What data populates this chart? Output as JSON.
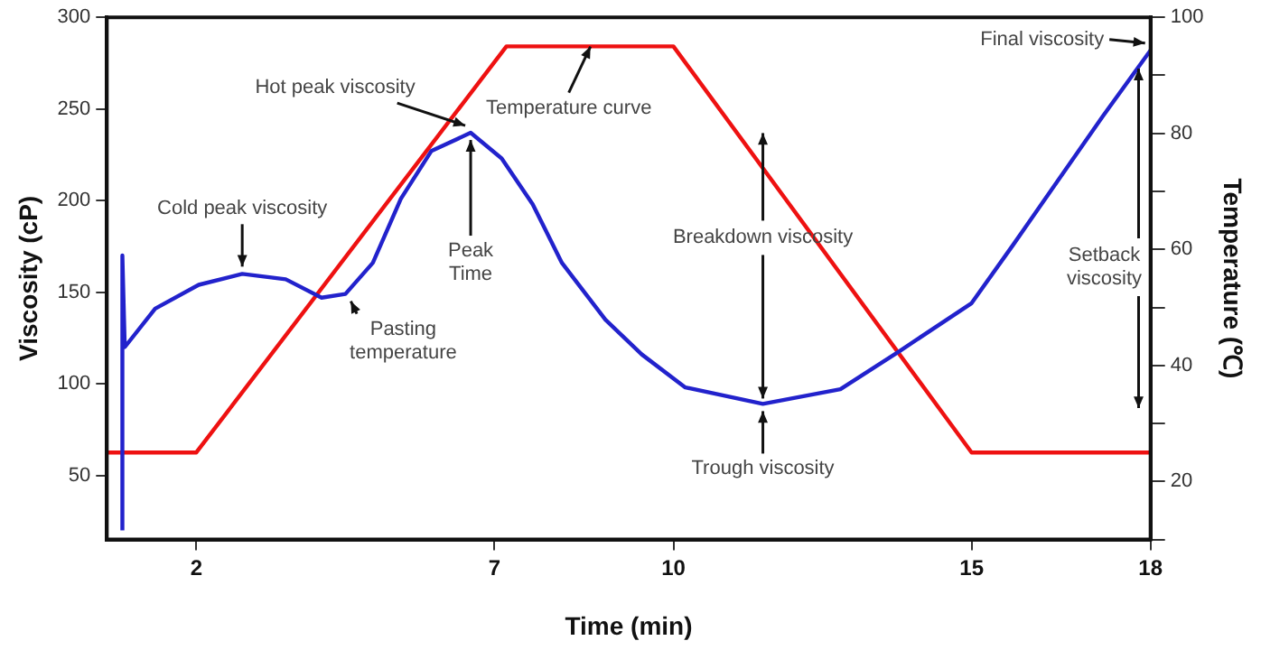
{
  "chart_data": {
    "type": "line",
    "xlabel": "Time (min)",
    "ylabel": "Viscosity (cP)",
    "y2label": "Temperature (℃)",
    "xlim": [
      0.5,
      18
    ],
    "xticks": [
      2,
      7,
      10,
      15,
      18
    ],
    "ylim": [
      15,
      300
    ],
    "yticks": [
      50,
      100,
      150,
      200,
      250,
      300
    ],
    "y2lim": [
      10,
      100
    ],
    "y2ticks": [
      {
        "value": 10,
        "label": null
      },
      20,
      {
        "value": 30,
        "label": null
      },
      40,
      {
        "value": 50,
        "label": null
      },
      60,
      {
        "value": 70,
        "label": null
      },
      80,
      {
        "value": 90,
        "label": null
      },
      100
    ],
    "series": [
      {
        "color": "#2222cc",
        "x": [
          0.76,
          0.76,
          0.8,
          1.31,
          2.04,
          2.77,
          3.5,
          4.1,
          4.5,
          4.96,
          5.43,
          5.94,
          6.6,
          7.12,
          7.64,
          8.13,
          8.86,
          9.47,
          10.2,
          11.5,
          12.8,
          13.8,
          15,
          15.7,
          16.45,
          17.2,
          18
        ],
        "values": [
          20,
          170,
          120,
          141,
          154,
          160,
          157,
          147,
          149,
          166,
          201,
          227,
          237,
          223,
          198,
          166,
          135,
          116,
          98,
          89,
          97,
          118,
          144,
          176,
          211,
          246,
          282
        ]
      },
      {
        "color": "#ee1111",
        "axis": "y2",
        "x": [
          0.5,
          2,
          7.2,
          10,
          15,
          18
        ],
        "values": [
          25,
          25,
          95,
          95,
          25,
          25
        ]
      }
    ],
    "annotations": [
      {
        "text": "Cold peak viscosity",
        "x": 2.77,
        "y": 160
      },
      {
        "text": "Hot peak viscosity",
        "x": 6.6,
        "y": 237
      },
      {
        "text": "Peak Time",
        "x": 6.6,
        "y": 237
      },
      {
        "text": "Pasting temperature",
        "x": 4.5,
        "y": 149
      },
      {
        "text": "Temperature curve",
        "x": 8.7,
        "y": 288
      },
      {
        "text": "Breakdown viscosity",
        "x": 11.5,
        "y": 89
      },
      {
        "text": "Trough viscosity",
        "x": 11.5,
        "y": 89
      },
      {
        "text": "Setback viscosity",
        "x": 17.8,
        "y": 272
      },
      {
        "text": "Final viscosity",
        "x": 18,
        "y": 282
      }
    ]
  }
}
